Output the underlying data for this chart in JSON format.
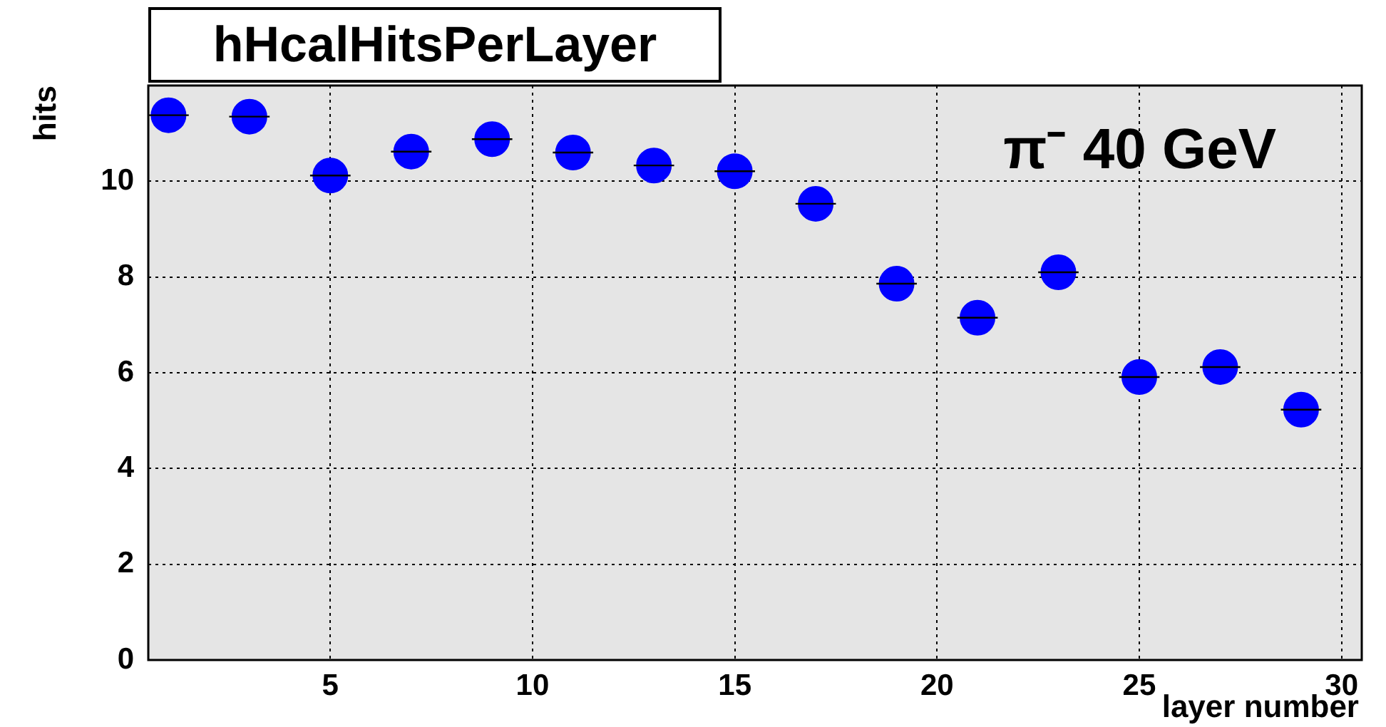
{
  "chart_data": {
    "type": "scatter",
    "title": "hHcalHitsPerLayer",
    "xlabel": "layer number",
    "ylabel": "hits",
    "x": [
      1,
      3,
      5,
      7,
      9,
      11,
      13,
      15,
      17,
      19,
      21,
      23,
      25,
      27,
      29
    ],
    "values": [
      11.38,
      11.35,
      10.12,
      10.62,
      10.88,
      10.6,
      10.33,
      10.21,
      9.53,
      7.86,
      7.15,
      8.1,
      5.91,
      6.12,
      5.23
    ],
    "xerrors": [
      0.5,
      0.5,
      0.5,
      0.5,
      0.5,
      0.5,
      0.5,
      0.5,
      0.5,
      0.5,
      0.5,
      0.5,
      0.5,
      0.5,
      0.5
    ],
    "color": "#0000ff",
    "marker": "circle",
    "grid": true,
    "xlim": [
      0.5,
      30.5
    ],
    "xticks": [
      5,
      10,
      15,
      20,
      25,
      30
    ],
    "ylim": [
      0,
      12
    ],
    "yticks": [
      0,
      2,
      4,
      6,
      8,
      10
    ],
    "annotations": [
      "π⁻ 40 GeV"
    ]
  }
}
